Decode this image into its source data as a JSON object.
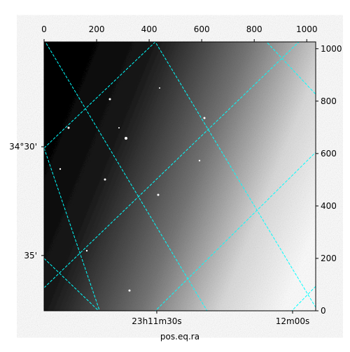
{
  "chart_data": {
    "type": "image",
    "xlim": [
      0,
      1034
    ],
    "ylim": [
      0,
      1026
    ],
    "xticks": [
      0,
      200,
      400,
      600,
      800,
      1000
    ],
    "yticks": [
      0,
      200,
      400,
      600,
      800,
      1000
    ],
    "xlabel": "pos.eq.ra",
    "world_xticks": [
      {
        "value": 429,
        "label": "23h11m30s"
      },
      {
        "value": 946,
        "label": "12m00s"
      }
    ],
    "world_yticks": [
      {
        "value": 626,
        "label": "34°30'"
      },
      {
        "value": 211,
        "label": "35'"
      }
    ],
    "grid_color": "#00ffff"
  }
}
